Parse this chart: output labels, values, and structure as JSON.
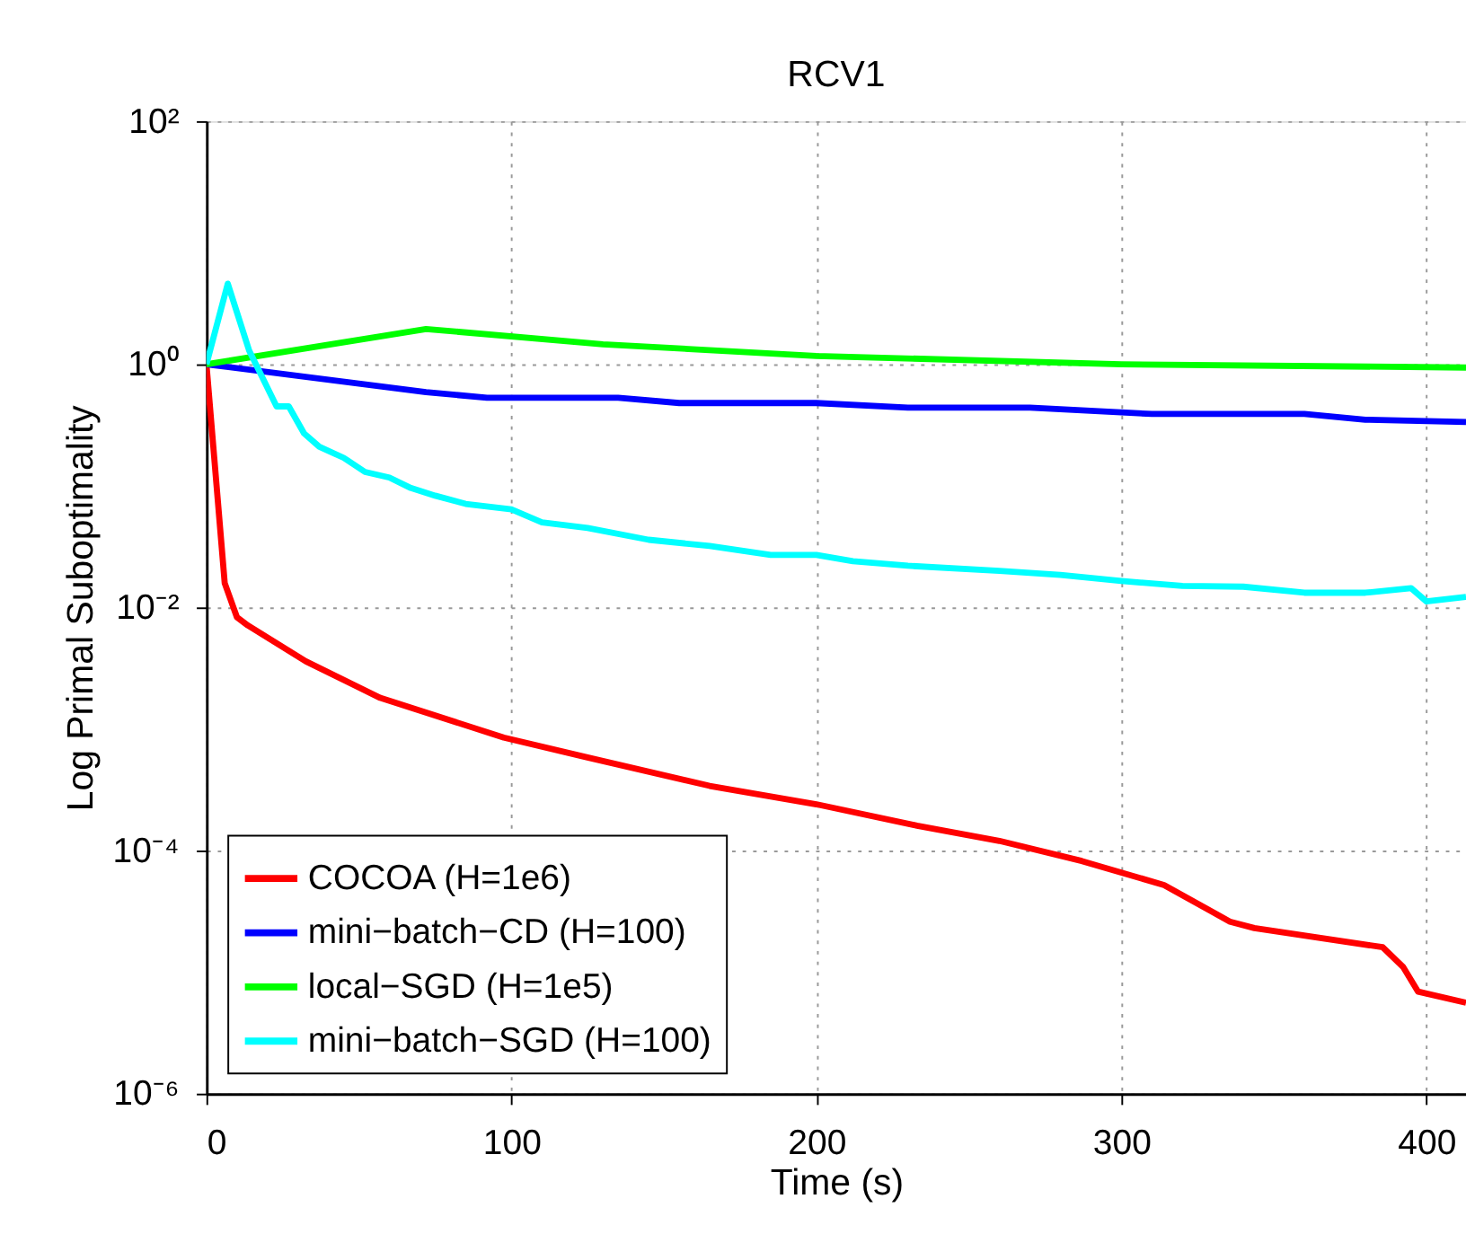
{
  "chart_data": {
    "type": "line",
    "title": "RCV1",
    "xlabel": "Time (s)",
    "ylabel": "Log Primal Suboptimality",
    "log": "y",
    "grid": true,
    "legend": "bottom left",
    "line_style": "solid",
    "marker": "none",
    "xlim": [
      0,
      413
    ],
    "xticks": [
      0,
      100,
      200,
      300,
      400
    ],
    "ylim": [
      1e-06,
      100
    ],
    "yticks": [
      {
        "value": 100,
        "label": "10²"
      },
      {
        "value": 1,
        "label": "10⁰"
      },
      {
        "value": 0.01,
        "label": "10⁻²"
      },
      {
        "value": 0.0001,
        "label": "10⁻⁴"
      },
      {
        "value": 1e-06,
        "label": "10⁻⁶"
      }
    ],
    "series": [
      {
        "name": "COCOA (H=1e6)",
        "color": "#ff0000",
        "x": [
          0,
          6,
          10,
          13.6,
          32.6,
          57,
          97.5,
          124,
          165,
          200,
          233,
          260,
          287,
          314,
          335.6,
          343.6,
          385.7,
          392.4,
          397.3,
          413
        ],
        "values": [
          1,
          0.0158,
          0.0083,
          0.0071,
          0.0036,
          0.0018,
          0.00085,
          0.00059,
          0.00034,
          0.00024,
          0.00016,
          0.00012,
          8.2e-05,
          5.2e-05,
          2.6e-05,
          2.3e-05,
          1.6e-05,
          1.1e-05,
          6.9e-06,
          5.6e-06
        ]
      },
      {
        "name": "mini−batch−CD (H=100)",
        "color": "#0000ff",
        "x": [
          0,
          72,
          92,
          135,
          155,
          200,
          230,
          270,
          310,
          360,
          380,
          413
        ],
        "values": [
          1,
          0.59,
          0.53,
          0.53,
          0.48,
          0.48,
          0.44,
          0.44,
          0.39,
          0.39,
          0.35,
          0.335
        ]
      },
      {
        "name": "local−SGD (H=1e5)",
        "color": "#00ff00",
        "x": [
          0,
          72,
          130,
          200,
          300,
          413
        ],
        "values": [
          1,
          1.95,
          1.46,
          1.17,
          1.0,
          0.94
        ]
      },
      {
        "name": "mini−batch−SGD (H=100)",
        "color": "#00ffff",
        "x": [
          0,
          7,
          14,
          23,
          27,
          32,
          37,
          45,
          52,
          60,
          67,
          75,
          85,
          100,
          110,
          125,
          145,
          165,
          185,
          200,
          212,
          230,
          260,
          280,
          300,
          320,
          340,
          360,
          380,
          395,
          400,
          413
        ],
        "values": [
          1,
          4.6,
          1.3,
          0.45,
          0.45,
          0.27,
          0.21,
          0.17,
          0.13,
          0.117,
          0.096,
          0.083,
          0.071,
          0.064,
          0.05,
          0.045,
          0.036,
          0.032,
          0.027,
          0.027,
          0.024,
          0.022,
          0.02,
          0.0185,
          0.0165,
          0.015,
          0.0148,
          0.0132,
          0.0132,
          0.0144,
          0.0112,
          0.0122
        ]
      }
    ]
  }
}
